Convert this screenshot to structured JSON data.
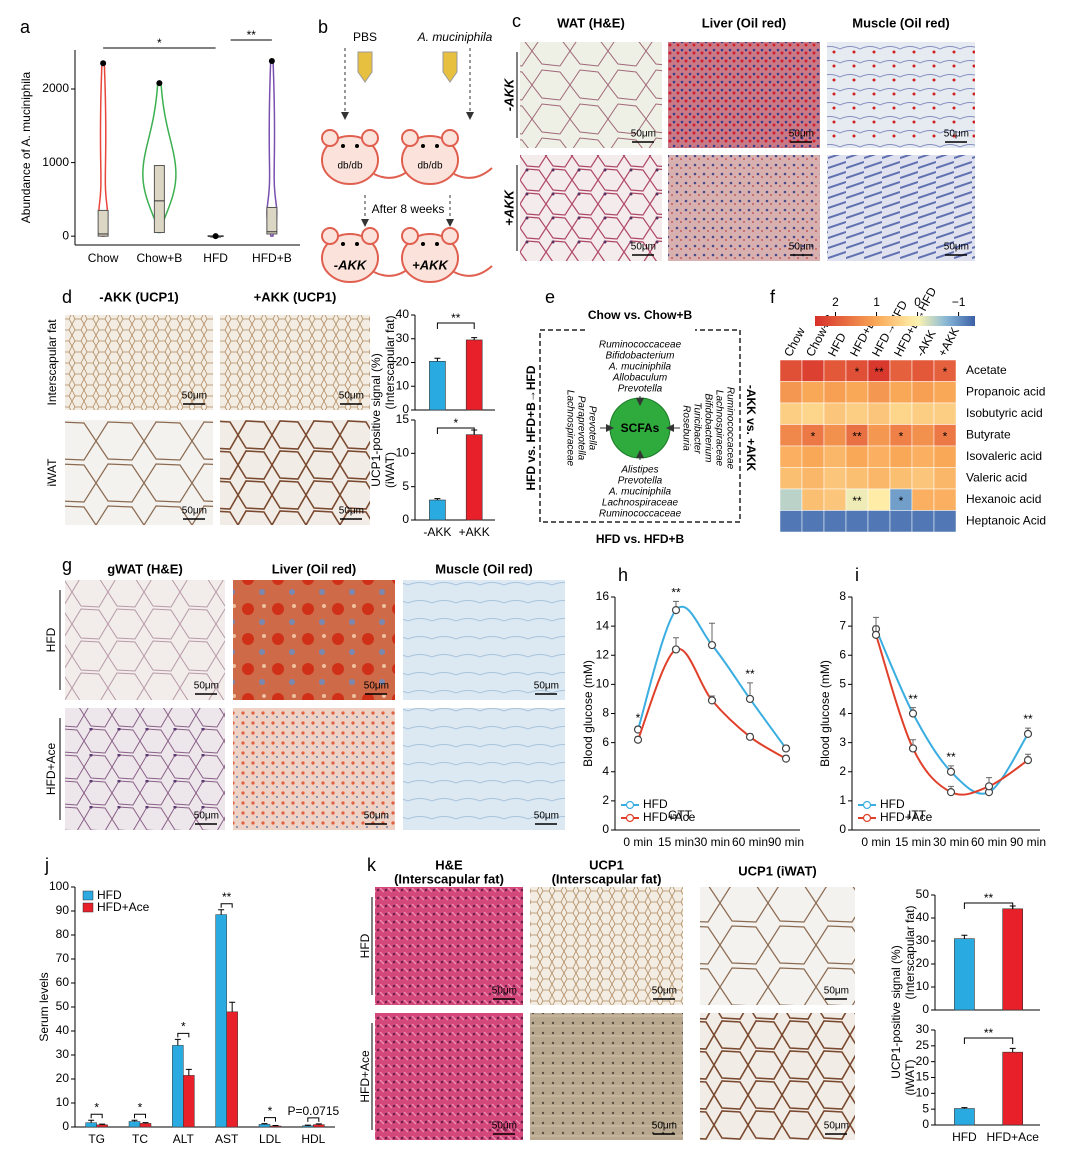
{
  "panel_labels": [
    "a",
    "b",
    "c",
    "d",
    "e",
    "f",
    "g",
    "h",
    "i",
    "j",
    "k"
  ],
  "scale_bar": "50μm",
  "b": {
    "left": "PBS",
    "right": "A. muciniphila",
    "mouse": "db/db",
    "arrow": "After 8 weeks",
    "minus": "-AKK",
    "plus": "+AKK"
  },
  "c": {
    "headers": [
      "WAT (H&E)",
      "Liver (Oil red)",
      "Muscle (Oil red)"
    ],
    "rows": [
      "-AKK",
      "+AKK"
    ]
  },
  "d": {
    "headers": [
      "-AKK (UCP1)",
      "+AKK (UCP1)"
    ],
    "rows": [
      "Interscapular fat",
      "iWAT"
    ]
  },
  "e": {
    "top": "Chow vs. Chow+B",
    "top_taxa": [
      "Ruminococcaceae",
      "Bifidobacterium",
      "A. muciniphila",
      "Allobaculum",
      "Prevotella"
    ],
    "center": "SCFAs",
    "bottom": "HFD vs. HFD+B",
    "bottom_taxa": [
      "Alistipes",
      "Prevotella",
      "A. muciniphila",
      "Lachnospiraceae",
      "Ruminococcaceae"
    ],
    "left": "HFD vs. HFD+B→HFD",
    "left_taxa": [
      "Prevotella",
      "Paraprevotella",
      "Lachnospiraceae"
    ],
    "right": "-AKK vs. +AKK",
    "right_taxa": [
      "Roseburia",
      "Turicibacter",
      "Bifidobacterium",
      "Lachnospiraceae",
      "Ruminococcaceae"
    ]
  },
  "g": {
    "headers": [
      "gWAT (H&E)",
      "Liver (Oil red)",
      "Muscle (Oil red)"
    ],
    "rows": [
      "HFD",
      "HFD+Ace"
    ]
  },
  "k": {
    "headers": [
      [
        "H&E",
        "(Interscapular fat)"
      ],
      [
        "UCP1",
        "(Interscapular fat)"
      ],
      [
        "UCP1 (iWAT)"
      ]
    ],
    "rows": [
      "HFD",
      "HFD+Ace"
    ]
  },
  "chart_data": [
    {
      "type": "violin",
      "ylabel": "Abundance of A. muciniphila",
      "categories": [
        "Chow",
        "Chow+B",
        "HFD",
        "HFD+B"
      ],
      "ylim": [
        -120,
        2530
      ],
      "yticks": [
        0,
        1000,
        2000
      ],
      "boxes": [
        {
          "color": "#e8463a",
          "min": 0,
          "q1": 0,
          "median": 30,
          "q3": 350,
          "max": 2350
        },
        {
          "color": "#3cb050",
          "min": 50,
          "q1": 50,
          "median": 480,
          "q3": 960,
          "max": 2080
        },
        {
          "color": "#222222",
          "min": 0,
          "q1": 0,
          "median": 0,
          "q3": 0,
          "max": 0
        },
        {
          "color": "#7a4fb0",
          "min": 0,
          "q1": 30,
          "median": 60,
          "q3": 390,
          "max": 2380
        }
      ],
      "annotations": [
        "*",
        "**"
      ]
    },
    {
      "type": "bar",
      "ylabel": "UCP1-positive signal (%)",
      "ylabel2": "(Interscapular fat)",
      "values": [
        20.5,
        29.5
      ],
      "errors": [
        1.3,
        1.0
      ],
      "colors": [
        "#29abe2",
        "#e8202a"
      ],
      "ylim": [
        0,
        40
      ],
      "yticks": [
        0,
        10,
        20,
        30,
        40
      ],
      "annotation": "**"
    },
    {
      "type": "bar",
      "ylabel2": "(iWAT)",
      "categories": [
        "-AKK",
        "+AKK"
      ],
      "values": [
        3.0,
        12.8
      ],
      "errors": [
        0.2,
        0.7
      ],
      "colors": [
        "#29abe2",
        "#e8202a"
      ],
      "ylim": [
        0,
        15
      ],
      "yticks": [
        0,
        5,
        10,
        15
      ],
      "annotation": "*"
    },
    {
      "type": "heatmap",
      "columns": [
        "Chow",
        "Chow+B",
        "HFD",
        "HFD+B",
        "HFD→HFD",
        "HFD+B→HFD",
        "-AKK",
        "+AKK"
      ],
      "rows": [
        "Acetate",
        "Propanoic acid",
        "Isobutyric acid",
        "Butyrate",
        "Isovaleric acid",
        "Valeric acid",
        "Hexanoic acid",
        "Heptanoic Acid"
      ],
      "row_colors": [
        "#e8202a",
        "#000000",
        "#000000",
        "#e8202a",
        "#000000",
        "#000000",
        "#000000",
        "#000000"
      ],
      "values": [
        [
          2.1,
          2.3,
          2.0,
          2.1,
          2.4,
          1.9,
          2.0,
          1.9
        ],
        [
          1.2,
          1.0,
          1.1,
          1.0,
          1.2,
          1.0,
          1.1,
          1.0
        ],
        [
          0.5,
          0.4,
          0.6,
          0.5,
          0.6,
          0.4,
          0.5,
          0.5
        ],
        [
          1.4,
          1.6,
          1.3,
          1.7,
          1.2,
          1.5,
          1.3,
          1.6
        ],
        [
          0.9,
          1.0,
          0.8,
          1.0,
          0.9,
          1.0,
          0.9,
          1.0
        ],
        [
          0.7,
          0.8,
          0.6,
          0.7,
          0.8,
          0.7,
          0.6,
          0.8
        ],
        [
          -0.4,
          0.7,
          0.6,
          -0.1,
          0.1,
          -0.9,
          0.9,
          0.9
        ],
        [
          -1.2,
          -1.2,
          -1.2,
          -1.2,
          -1.2,
          -1.2,
          -1.2,
          -1.2
        ]
      ],
      "stars": [
        [
          null,
          null,
          null,
          "*",
          "**",
          null,
          null,
          "*"
        ],
        [
          null,
          null,
          null,
          null,
          null,
          null,
          null,
          null
        ],
        [
          null,
          null,
          null,
          null,
          null,
          null,
          null,
          null
        ],
        [
          null,
          "*",
          null,
          "**",
          null,
          "*",
          null,
          "*"
        ],
        [
          null,
          null,
          null,
          null,
          null,
          null,
          null,
          null
        ],
        [
          null,
          null,
          null,
          null,
          null,
          null,
          null,
          null
        ],
        [
          null,
          null,
          null,
          "**",
          null,
          "*",
          null,
          null
        ],
        [
          null,
          null,
          null,
          null,
          null,
          null,
          null,
          null
        ]
      ],
      "clim": [
        -1.4,
        2.5
      ],
      "cticks": [
        2,
        1,
        0,
        {
          "value": -1,
          "label": "−1"
        }
      ]
    },
    {
      "type": "line",
      "ylabel": "Blood glucose (mM)",
      "categories": [
        "0 min",
        "15 min",
        "30 min",
        "60 min",
        "90 min"
      ],
      "series": [
        {
          "name": "HFD",
          "color": "#3aaee0",
          "values": [
            6.9,
            15.1,
            12.7,
            9.0,
            5.6
          ],
          "errors": [
            0.2,
            0.6,
            1.5,
            1.1,
            0.2
          ]
        },
        {
          "name": "HFD+Ace",
          "color": "#e0402a",
          "values": [
            6.2,
            12.4,
            8.9,
            6.4,
            4.9
          ],
          "errors": [
            0.2,
            0.8,
            0.3,
            0.2,
            0.2
          ]
        }
      ],
      "ylim": [
        0,
        16
      ],
      "yticks": [
        0,
        2,
        4,
        6,
        8,
        10,
        12,
        14,
        16
      ],
      "annotation": "GTT",
      "stars": [
        "*",
        "**",
        null,
        "**",
        null
      ]
    },
    {
      "type": "line",
      "ylabel": "Blood glucose (mM)",
      "categories": [
        "0 min",
        "15 min",
        "30 min",
        "60 min",
        "90 min"
      ],
      "series": [
        {
          "name": "HFD",
          "color": "#3aaee0",
          "values": [
            6.9,
            4.0,
            2.0,
            1.3,
            3.3
          ],
          "errors": [
            0.4,
            0.2,
            0.2,
            0.2,
            0.2
          ]
        },
        {
          "name": "HFD+Ace",
          "color": "#e0402a",
          "values": [
            6.7,
            2.8,
            1.3,
            1.5,
            2.4
          ],
          "errors": [
            0.3,
            0.3,
            0.2,
            0.3,
            0.2
          ]
        }
      ],
      "ylim": [
        0,
        8
      ],
      "yticks": [
        0,
        1,
        2,
        3,
        4,
        5,
        6,
        7,
        8
      ],
      "annotation": "ITT",
      "stars": [
        null,
        "**",
        "**",
        null,
        "**"
      ]
    },
    {
      "type": "grouped_bar",
      "ylabel": "Serum levels",
      "categories": [
        "TG",
        "TC",
        "ALT",
        "AST",
        "LDL",
        "HDL"
      ],
      "series": [
        {
          "name": "HFD",
          "color": "#29abe2",
          "values": [
            1.8,
            2.3,
            34,
            88.5,
            1.1,
            0.5
          ],
          "errors": [
            1.0,
            0.5,
            2.5,
            2.0,
            0.3,
            0.3
          ]
        },
        {
          "name": "HFD+Ace",
          "color": "#e8202a",
          "values": [
            0.9,
            1.5,
            21.5,
            48,
            0.4,
            1.0
          ],
          "errors": [
            0.3,
            0.3,
            2.5,
            4.0,
            0.2,
            0.3
          ]
        }
      ],
      "ylim": [
        0,
        100
      ],
      "yticks": [
        0,
        10,
        20,
        30,
        40,
        50,
        60,
        70,
        80,
        90,
        100
      ],
      "stars": [
        "*",
        "*",
        "*",
        "**",
        "*",
        "P=0.0715"
      ]
    },
    {
      "type": "bar",
      "ylabel": "UCP1-positive signal (%)",
      "ylabel2": "(Interscapular fat)",
      "values": [
        31,
        44
      ],
      "errors": [
        1.5,
        1.2
      ],
      "colors": [
        "#29abe2",
        "#e8202a"
      ],
      "ylim": [
        0,
        50
      ],
      "yticks": [
        0,
        10,
        20,
        30,
        40,
        50
      ],
      "annotation": "**"
    },
    {
      "type": "bar",
      "ylabel2": "(iWAT)",
      "categories": [
        "HFD",
        "HFD+Ace"
      ],
      "values": [
        5.2,
        23
      ],
      "errors": [
        0.3,
        1.2
      ],
      "colors": [
        "#29abe2",
        "#e8202a"
      ],
      "ylim": [
        0,
        30
      ],
      "yticks": [
        0,
        5,
        10,
        15,
        20,
        25,
        30
      ],
      "annotation": "**"
    }
  ]
}
